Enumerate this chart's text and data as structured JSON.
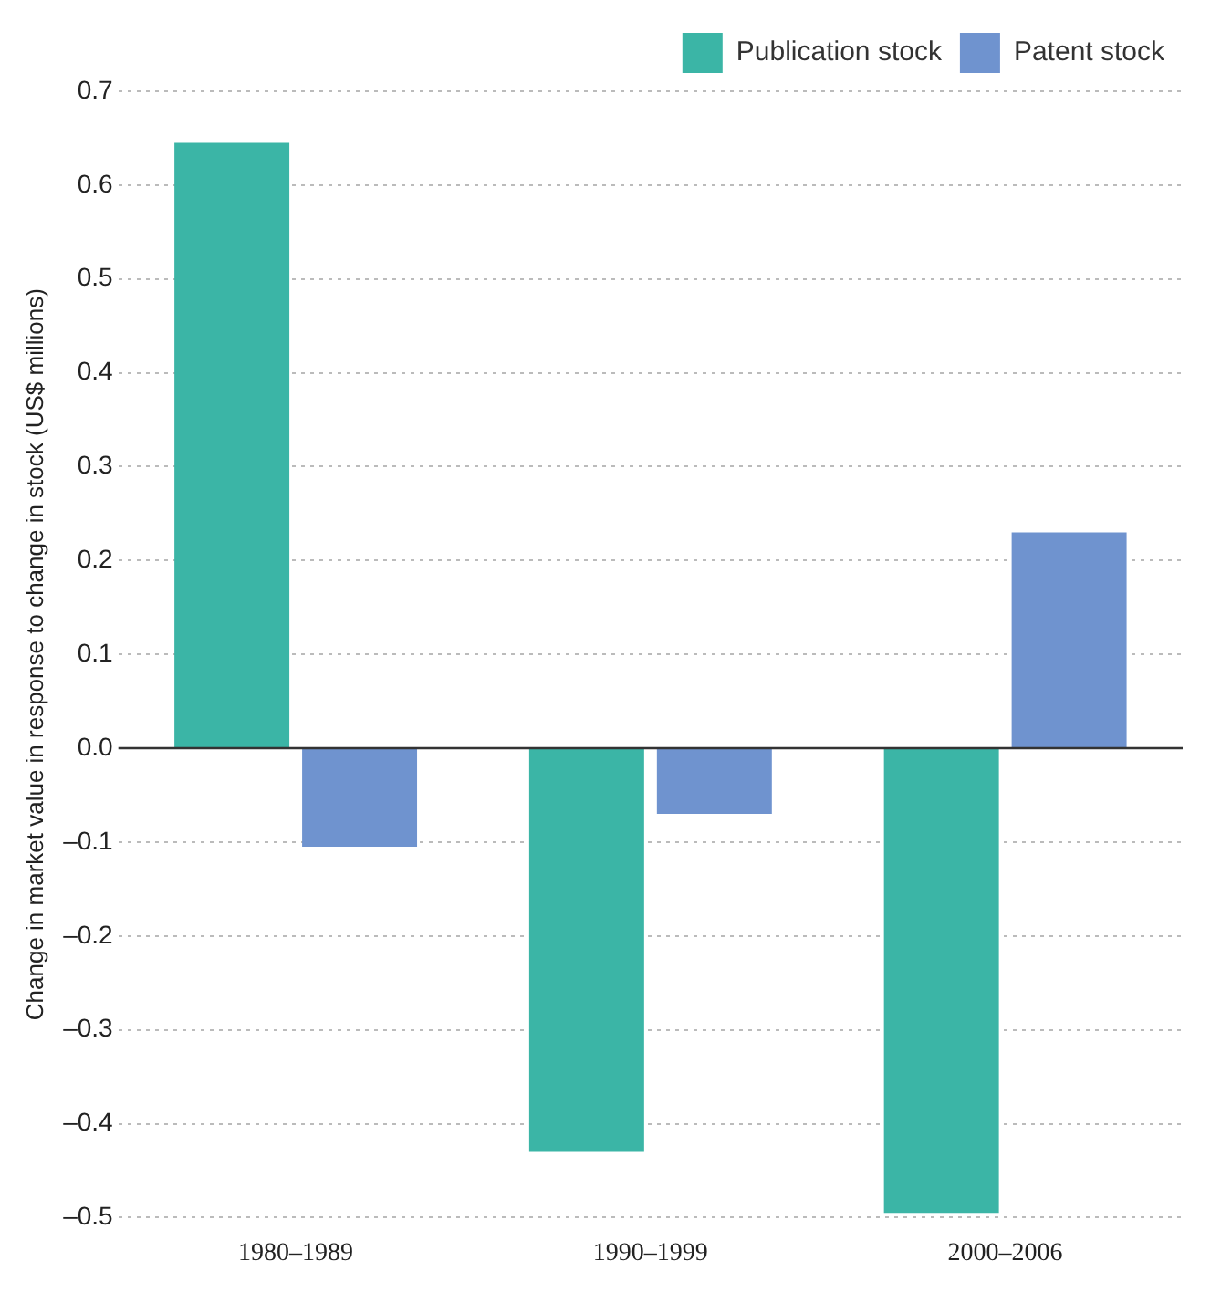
{
  "chart_data": {
    "type": "bar",
    "ylabel": "Change in market value in response to change in stock (US$ millions)",
    "categories": [
      "1980–1989",
      "1990–1999",
      "2000–2006"
    ],
    "series": [
      {
        "name": "Publication stock",
        "color": "#3bb5a6",
        "values": [
          0.645,
          -0.43,
          -0.495
        ]
      },
      {
        "name": "Patent stock",
        "color": "#6f93cf",
        "values": [
          -0.105,
          -0.07,
          0.23
        ]
      }
    ],
    "ylim": [
      -0.5,
      0.7
    ],
    "yticks": [
      {
        "value": -0.5,
        "label": "–0.5"
      },
      {
        "value": -0.4,
        "label": "–0.4"
      },
      {
        "value": -0.3,
        "label": "–0.3"
      },
      {
        "value": -0.2,
        "label": "–0.2"
      },
      {
        "value": -0.1,
        "label": "–0.1"
      },
      {
        "value": 0,
        "label": "0.0"
      },
      {
        "value": 0.1,
        "label": "0.1"
      },
      {
        "value": 0.2,
        "label": "0.2"
      },
      {
        "value": 0.3,
        "label": "0.3"
      },
      {
        "value": 0.4,
        "label": "0.4"
      },
      {
        "value": 0.5,
        "label": "0.5"
      },
      {
        "value": 0.6,
        "label": "0.6"
      },
      {
        "value": 0.7,
        "label": "0.7"
      }
    ],
    "grid": "y",
    "legend": "top right"
  }
}
